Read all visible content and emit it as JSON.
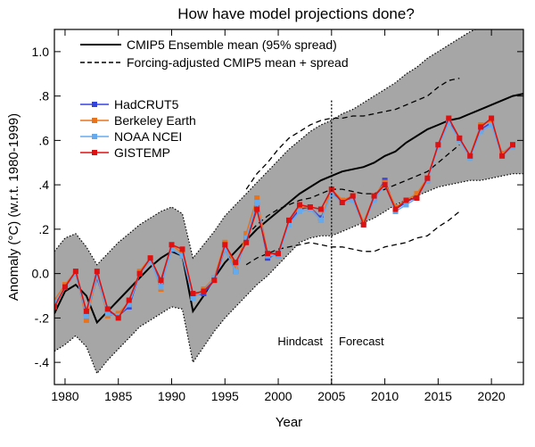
{
  "chart_data": {
    "type": "line",
    "title": "How have model projections done?",
    "xlabel": "Year",
    "ylabel": "Anomaly (°C) (w.r.t. 1980-1999)",
    "xlim": [
      1979,
      2023
    ],
    "ylim": [
      -0.5,
      1.1
    ],
    "xticks": [
      1980,
      1985,
      1990,
      1995,
      2000,
      2005,
      2010,
      2015,
      2020
    ],
    "xtick_labels": [
      "1980",
      "1985",
      "1990",
      "1995",
      "2000",
      "2005",
      "2010",
      "2015",
      "2020"
    ],
    "yticks": [
      -0.4,
      -0.2,
      0.0,
      0.2,
      0.4,
      0.6,
      0.8,
      1.0
    ],
    "ytick_labels": [
      "-.4",
      "-.2",
      "0.0",
      ".2",
      ".4",
      ".6",
      ".8",
      "1.0"
    ],
    "grid": false,
    "annotations": {
      "hindcast": "Hindcast",
      "forecast": "Forecast",
      "divider_year": 2005
    },
    "legend_top": {
      "placement": "top-right",
      "entries": [
        {
          "label": "CMIP5 Ensemble mean (95% spread)",
          "style": "solid"
        },
        {
          "label": "Forcing-adjusted CMIP5 mean + spread",
          "style": "dashed"
        }
      ]
    },
    "legend_obs": {
      "placement": "upper-left",
      "entries": [
        {
          "label": "HadCRUT5",
          "color": "#3344dd"
        },
        {
          "label": "Berkeley Earth",
          "color": "#e8731a"
        },
        {
          "label": "NOAA NCEI",
          "color": "#66aaee"
        },
        {
          "label": "GISTEMP",
          "color": "#dd1111"
        }
      ]
    },
    "ensemble": {
      "x": [
        1979,
        1980,
        1981,
        1982,
        1983,
        1984,
        1985,
        1986,
        1987,
        1988,
        1989,
        1990,
        1991,
        1992,
        1993,
        1994,
        1995,
        1996,
        1997,
        1998,
        1999,
        2000,
        2001,
        2002,
        2003,
        2004,
        2005,
        2006,
        2007,
        2008,
        2009,
        2010,
        2011,
        2012,
        2013,
        2014,
        2015,
        2016,
        2017,
        2018,
        2019,
        2020,
        2021,
        2022,
        2023
      ],
      "mean": [
        -0.18,
        -0.08,
        -0.05,
        -0.1,
        -0.22,
        -0.17,
        -0.12,
        -0.07,
        -0.02,
        0.03,
        0.07,
        0.1,
        0.08,
        -0.17,
        -0.1,
        -0.02,
        0.05,
        0.1,
        0.15,
        0.2,
        0.24,
        0.28,
        0.32,
        0.36,
        0.39,
        0.42,
        0.44,
        0.46,
        0.47,
        0.48,
        0.5,
        0.53,
        0.55,
        0.59,
        0.62,
        0.65,
        0.67,
        0.69,
        0.7,
        0.72,
        0.74,
        0.76,
        0.78,
        0.8,
        0.81
      ],
      "upper": [
        0.1,
        0.16,
        0.18,
        0.12,
        0.04,
        0.09,
        0.14,
        0.18,
        0.22,
        0.25,
        0.28,
        0.3,
        0.27,
        0.07,
        0.13,
        0.19,
        0.26,
        0.31,
        0.36,
        0.41,
        0.46,
        0.51,
        0.56,
        0.6,
        0.64,
        0.67,
        0.69,
        0.72,
        0.74,
        0.77,
        0.8,
        0.83,
        0.86,
        0.9,
        0.93,
        0.97,
        1.0,
        1.03,
        1.06,
        1.09,
        1.11,
        1.13,
        1.15,
        1.17,
        1.18
      ],
      "lower": [
        -0.35,
        -0.32,
        -0.28,
        -0.33,
        -0.45,
        -0.39,
        -0.34,
        -0.29,
        -0.24,
        -0.21,
        -0.18,
        -0.15,
        -0.16,
        -0.4,
        -0.33,
        -0.26,
        -0.2,
        -0.15,
        -0.1,
        -0.05,
        -0.01,
        0.04,
        0.09,
        0.14,
        0.16,
        0.17,
        0.17,
        0.19,
        0.21,
        0.23,
        0.25,
        0.28,
        0.31,
        0.33,
        0.35,
        0.37,
        0.39,
        0.4,
        0.41,
        0.42,
        0.42,
        0.43,
        0.44,
        0.45,
        0.45
      ]
    },
    "adjusted": {
      "x": [
        1997,
        1998,
        1999,
        2000,
        2001,
        2002,
        2003,
        2004,
        2005,
        2006,
        2007,
        2008,
        2009,
        2010,
        2011,
        2012,
        2013,
        2014,
        2015,
        2016,
        2017
      ],
      "mean": [
        0.17,
        0.22,
        0.26,
        0.29,
        0.31,
        0.33,
        0.34,
        0.36,
        0.38,
        0.38,
        0.37,
        0.36,
        0.36,
        0.38,
        0.4,
        0.42,
        0.44,
        0.46,
        0.5,
        0.54,
        0.58
      ],
      "upper": [
        0.38,
        0.45,
        0.5,
        0.56,
        0.61,
        0.64,
        0.67,
        0.69,
        0.7,
        0.7,
        0.71,
        0.71,
        0.72,
        0.73,
        0.74,
        0.76,
        0.78,
        0.8,
        0.84,
        0.87,
        0.88
      ],
      "lower": [
        0.04,
        0.07,
        0.09,
        0.11,
        0.12,
        0.13,
        0.14,
        0.13,
        0.12,
        0.12,
        0.11,
        0.1,
        0.1,
        0.12,
        0.13,
        0.14,
        0.16,
        0.17,
        0.21,
        0.24,
        0.28
      ]
    },
    "series": [
      {
        "name": "HadCRUT5",
        "color": "#3344dd",
        "x": [
          1979,
          1980,
          1981,
          1982,
          1983,
          1984,
          1985,
          1986,
          1987,
          1988,
          1989,
          1990,
          1991,
          1992,
          1993,
          1994,
          1995,
          1996,
          1997,
          1998,
          1999,
          2000,
          2001,
          2002,
          2003,
          2004,
          2005,
          2006,
          2007,
          2008,
          2009,
          2010,
          2011,
          2012,
          2013,
          2014,
          2015,
          2016,
          2017,
          2018,
          2019,
          2020,
          2021,
          2022
        ],
        "values": [
          -0.14,
          -0.06,
          0.0,
          -0.18,
          -0.02,
          -0.17,
          -0.19,
          -0.15,
          0.0,
          0.06,
          -0.05,
          0.11,
          0.08,
          -0.1,
          -0.09,
          -0.03,
          0.11,
          0.01,
          0.16,
          0.31,
          0.07,
          0.09,
          0.23,
          0.29,
          0.3,
          0.25,
          0.36,
          0.33,
          0.34,
          0.23,
          0.34,
          0.42,
          0.29,
          0.32,
          0.35,
          0.42,
          0.58,
          0.69,
          0.61,
          0.53,
          0.65,
          0.68,
          0.54,
          0.58
        ]
      },
      {
        "name": "Berkeley Earth",
        "color": "#e8731a",
        "x": [
          1979,
          1980,
          1981,
          1982,
          1983,
          1984,
          1985,
          1986,
          1987,
          1988,
          1989,
          1990,
          1991,
          1992,
          1993,
          1994,
          1995,
          1996,
          1997,
          1998,
          1999,
          2000,
          2001,
          2002,
          2003,
          2004,
          2005,
          2006,
          2007,
          2008,
          2009,
          2010,
          2011,
          2012,
          2013,
          2014,
          2015,
          2016,
          2017,
          2018,
          2019,
          2020,
          2021,
          2022
        ],
        "values": [
          -0.12,
          -0.05,
          0.01,
          -0.21,
          -0.01,
          -0.19,
          -0.18,
          -0.13,
          0.01,
          0.07,
          -0.07,
          0.13,
          0.09,
          -0.11,
          -0.07,
          -0.02,
          0.14,
          0.02,
          0.18,
          0.34,
          0.09,
          0.09,
          0.24,
          0.3,
          0.3,
          0.24,
          0.38,
          0.33,
          0.35,
          0.23,
          0.35,
          0.41,
          0.3,
          0.33,
          0.36,
          0.43,
          0.58,
          0.7,
          0.61,
          0.53,
          0.67,
          0.69,
          0.54,
          0.58
        ]
      },
      {
        "name": "NOAA NCEI",
        "color": "#66aaee",
        "x": [
          1979,
          1980,
          1981,
          1982,
          1983,
          1984,
          1985,
          1986,
          1987,
          1988,
          1989,
          1990,
          1991,
          1992,
          1993,
          1994,
          1995,
          1996,
          1997,
          1998,
          1999,
          2000,
          2001,
          2002,
          2003,
          2004,
          2005,
          2006,
          2007,
          2008,
          2009,
          2010,
          2011,
          2012,
          2013,
          2014,
          2015,
          2016,
          2017,
          2018,
          2019,
          2020,
          2021,
          2022
        ],
        "values": [
          -0.13,
          -0.06,
          0.0,
          -0.19,
          -0.01,
          -0.18,
          -0.19,
          -0.14,
          0.0,
          0.06,
          -0.06,
          0.11,
          0.08,
          -0.11,
          -0.08,
          -0.02,
          0.11,
          0.01,
          0.16,
          0.32,
          0.08,
          0.08,
          0.22,
          0.28,
          0.29,
          0.24,
          0.36,
          0.32,
          0.33,
          0.22,
          0.33,
          0.4,
          0.28,
          0.31,
          0.34,
          0.42,
          0.57,
          0.68,
          0.6,
          0.52,
          0.64,
          0.67,
          0.53,
          0.57
        ]
      },
      {
        "name": "GISTEMP",
        "color": "#dd1111",
        "x": [
          1979,
          1980,
          1981,
          1982,
          1983,
          1984,
          1985,
          1986,
          1987,
          1988,
          1989,
          1990,
          1991,
          1992,
          1993,
          1994,
          1995,
          1996,
          1997,
          1998,
          1999,
          2000,
          2001,
          2002,
          2003,
          2004,
          2005,
          2006,
          2007,
          2008,
          2009,
          2010,
          2011,
          2012,
          2013,
          2014,
          2015,
          2016,
          2017,
          2018,
          2019,
          2020,
          2021,
          2022
        ],
        "values": [
          -0.15,
          -0.06,
          0.01,
          -0.17,
          0.01,
          -0.16,
          -0.2,
          -0.12,
          0.0,
          0.07,
          -0.03,
          0.13,
          0.11,
          -0.09,
          -0.08,
          -0.03,
          0.13,
          0.05,
          0.14,
          0.29,
          0.09,
          0.09,
          0.24,
          0.31,
          0.3,
          0.29,
          0.38,
          0.32,
          0.35,
          0.22,
          0.35,
          0.4,
          0.29,
          0.33,
          0.34,
          0.43,
          0.58,
          0.7,
          0.61,
          0.53,
          0.66,
          0.7,
          0.53,
          0.58
        ]
      }
    ]
  }
}
